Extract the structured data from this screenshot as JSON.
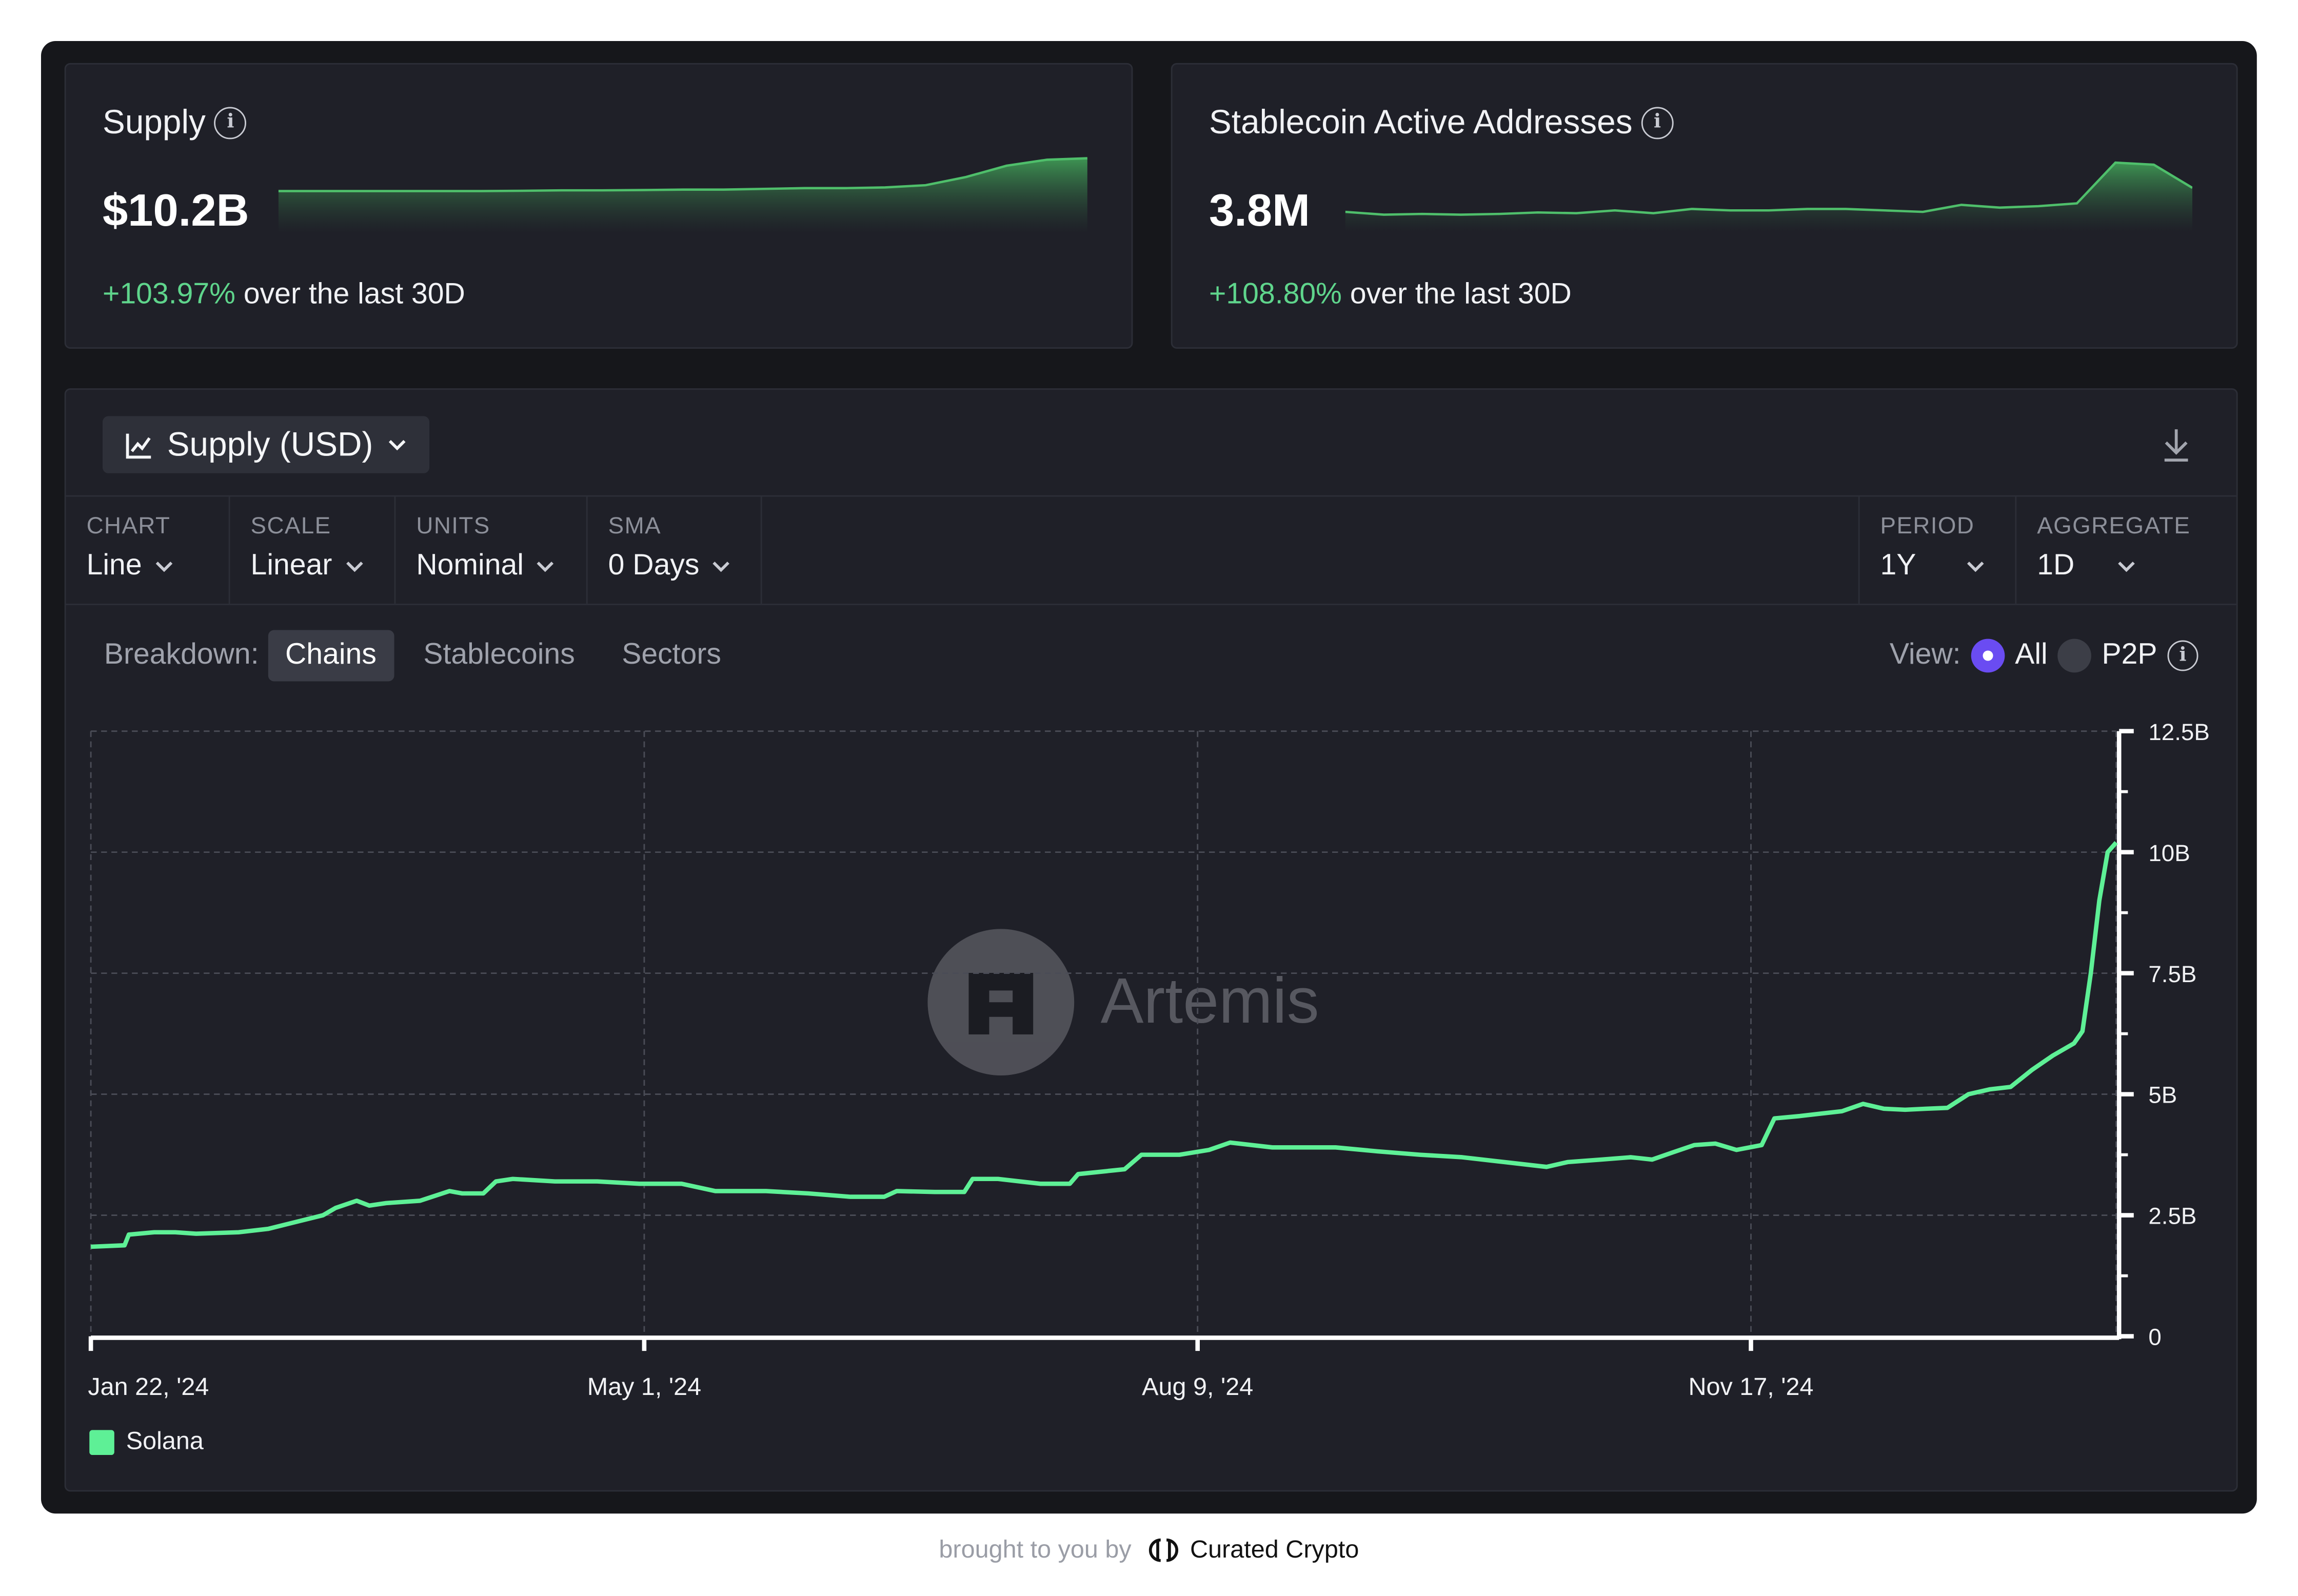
{
  "kpis": [
    {
      "title": "Supply",
      "value": "$10.2B",
      "change_pct": "+103.97%",
      "change_suffix": " over the last 30D",
      "spark": [
        0.56,
        0.56,
        0.56,
        0.56,
        0.56,
        0.56,
        0.565,
        0.57,
        0.57,
        0.575,
        0.58,
        0.58,
        0.59,
        0.6,
        0.6,
        0.61,
        0.64,
        0.75,
        0.9,
        0.98,
        1.0
      ]
    },
    {
      "title": "Stablecoin Active Addresses",
      "value": "3.8M",
      "change_pct": "+108.80%",
      "change_suffix": " over the last 30D",
      "spark": [
        0.28,
        0.24,
        0.25,
        0.24,
        0.25,
        0.27,
        0.26,
        0.3,
        0.26,
        0.32,
        0.3,
        0.3,
        0.32,
        0.32,
        0.3,
        0.28,
        0.38,
        0.34,
        0.36,
        0.4,
        0.98,
        0.95,
        0.62
      ]
    }
  ],
  "main": {
    "metric_label": "Supply (USD)",
    "controls": [
      {
        "label": "CHART",
        "value": "Line"
      },
      {
        "label": "SCALE",
        "value": "Linear"
      },
      {
        "label": "UNITS",
        "value": "Nominal"
      },
      {
        "label": "SMA",
        "value": "0 Days"
      },
      {
        "label": "PERIOD",
        "value": "1Y"
      },
      {
        "label": "AGGREGATE",
        "value": "1D"
      }
    ],
    "breakdown": {
      "label": "Breakdown:",
      "options": [
        "Chains",
        "Stablecoins",
        "Sectors"
      ],
      "active": "Chains"
    },
    "view": {
      "label": "View:",
      "options": [
        "All",
        "P2P"
      ],
      "selected": "All"
    },
    "watermark": "Artemis"
  },
  "chart_data": {
    "type": "line",
    "x_ticks": [
      "Jan 22, '24",
      "May 1, '24",
      "Aug 9, '24",
      "Nov 17, '24"
    ],
    "y_ticks": [
      "0",
      "2.5B",
      "5B",
      "7.5B",
      "10B",
      "12.5B"
    ],
    "ylim": [
      0,
      12.5
    ],
    "y_unit": "B USD",
    "grid": true,
    "legend_position": "bottom-left",
    "series": [
      {
        "name": "Solana",
        "color": "#5ef096",
        "points": [
          [
            0,
            1.85
          ],
          [
            8,
            1.88
          ],
          [
            9,
            2.1
          ],
          [
            15,
            2.15
          ],
          [
            20,
            2.15
          ],
          [
            25,
            2.12
          ],
          [
            35,
            2.15
          ],
          [
            42,
            2.22
          ],
          [
            48,
            2.35
          ],
          [
            55,
            2.5
          ],
          [
            58,
            2.65
          ],
          [
            63,
            2.8
          ],
          [
            66,
            2.7
          ],
          [
            70,
            2.75
          ],
          [
            78,
            2.8
          ],
          [
            85,
            3.0
          ],
          [
            88,
            2.95
          ],
          [
            93,
            2.95
          ],
          [
            96,
            3.2
          ],
          [
            100,
            3.25
          ],
          [
            110,
            3.2
          ],
          [
            120,
            3.2
          ],
          [
            130,
            3.15
          ],
          [
            140,
            3.15
          ],
          [
            148,
            3.0
          ],
          [
            160,
            3.0
          ],
          [
            170,
            2.95
          ],
          [
            180,
            2.88
          ],
          [
            188,
            2.88
          ],
          [
            191,
            3.0
          ],
          [
            200,
            2.98
          ],
          [
            207,
            2.98
          ],
          [
            209,
            3.25
          ],
          [
            215,
            3.25
          ],
          [
            225,
            3.15
          ],
          [
            232,
            3.15
          ],
          [
            234,
            3.35
          ],
          [
            245,
            3.45
          ],
          [
            249,
            3.75
          ],
          [
            258,
            3.75
          ],
          [
            265,
            3.85
          ],
          [
            270,
            4.0
          ],
          [
            280,
            3.9
          ],
          [
            295,
            3.9
          ],
          [
            305,
            3.82
          ],
          [
            315,
            3.75
          ],
          [
            325,
            3.7
          ],
          [
            335,
            3.6
          ],
          [
            345,
            3.5
          ],
          [
            350,
            3.6
          ],
          [
            358,
            3.65
          ],
          [
            365,
            3.7
          ],
          [
            370,
            3.65
          ],
          [
            375,
            3.8
          ],
          [
            380,
            3.95
          ],
          [
            385,
            3.98
          ],
          [
            390,
            3.85
          ],
          [
            396,
            3.95
          ],
          [
            399,
            4.5
          ],
          [
            405,
            4.55
          ],
          [
            410,
            4.6
          ],
          [
            415,
            4.65
          ],
          [
            420,
            4.8
          ],
          [
            425,
            4.7
          ],
          [
            430,
            4.68
          ],
          [
            435,
            4.7
          ],
          [
            440,
            4.72
          ],
          [
            445,
            5.0
          ],
          [
            450,
            5.1
          ],
          [
            455,
            5.15
          ],
          [
            460,
            5.5
          ],
          [
            465,
            5.8
          ],
          [
            470,
            6.05
          ],
          [
            472,
            6.3
          ],
          [
            474,
            7.5
          ],
          [
            476,
            9.0
          ],
          [
            478,
            10.0
          ],
          [
            480,
            10.2
          ]
        ]
      }
    ]
  },
  "footer": {
    "prefix": "brought to you by",
    "brand": "Curated Crypto"
  }
}
